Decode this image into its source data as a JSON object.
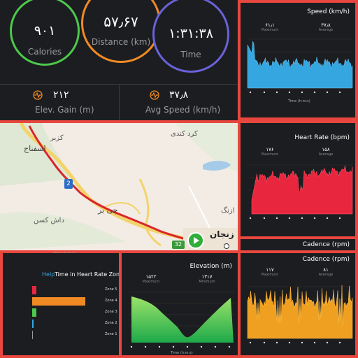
{
  "summary": {
    "calories": {
      "value": "۹۰۱",
      "label": "Calories",
      "color": "#4cc94c"
    },
    "distance": {
      "value": "۵۷٫۶۷",
      "label": "Distance (km)",
      "color": "#f08a24"
    },
    "time": {
      "value": "۱:۳۱:۳۸",
      "label": "Time",
      "color": "#6a62d9"
    },
    "elev_gain": {
      "value": "۲۱۲",
      "label": "Elev. Gain (m)",
      "icon": "pulse-icon"
    },
    "avg_speed": {
      "value": "۳۷٫۸",
      "label": "Avg Speed (km/h)",
      "icon": "pulse-icon"
    }
  },
  "map": {
    "labels": [
      "کزبر",
      "اسفناج",
      "کرد کندی",
      "چی بر",
      "داش کسن",
      "ازنگ",
      "زنجان"
    ],
    "road_badges": [
      "2",
      "32"
    ],
    "time_label": "Time (h:m:s)"
  },
  "speed": {
    "title": "Speed (km/h)",
    "max_value": "۶۱٫۱",
    "max_label": "Maximum",
    "avg_value": "۳۷٫۸",
    "avg_label": "Average",
    "xlabel": "Time (h:m:s)",
    "color": "#35a6e0"
  },
  "heart": {
    "title": "Heart Rate (bpm)",
    "max_value": "۱۷۶",
    "max_label": "Maximum",
    "avg_value": "۱۵۸",
    "avg_label": "Average",
    "color": "#e8273f"
  },
  "cadence_strip": {
    "title": "Cadence (rpm)"
  },
  "zones": {
    "help": "Help",
    "title": "Time in Heart Rate Zones",
    "rows": [
      {
        "name": "Zone 5",
        "color": "#e8273f"
      },
      {
        "name": "Zone 4",
        "color": "#f08a24"
      },
      {
        "name": "Zone 3",
        "color": "#4cc94c"
      },
      {
        "name": "Zone 2",
        "color": "#35a6e0"
      },
      {
        "name": "Zone 1",
        "color": "#9a9a9a"
      }
    ]
  },
  "elevation": {
    "title": "Elevation (m)",
    "max_value": "۱۵۲۲",
    "max_label": "Maximum",
    "min_value": "۱۳۱۷",
    "min_label": "Minimum",
    "xlabel": "Time (h:m:s)",
    "color": "#4cc94c"
  },
  "cadence": {
    "title": "Cadence (rpm)",
    "max_value": "۱۱۷",
    "max_label": "Maximum",
    "avg_value": "۸۱",
    "avg_label": "Average",
    "color": "#f0a020"
  }
}
